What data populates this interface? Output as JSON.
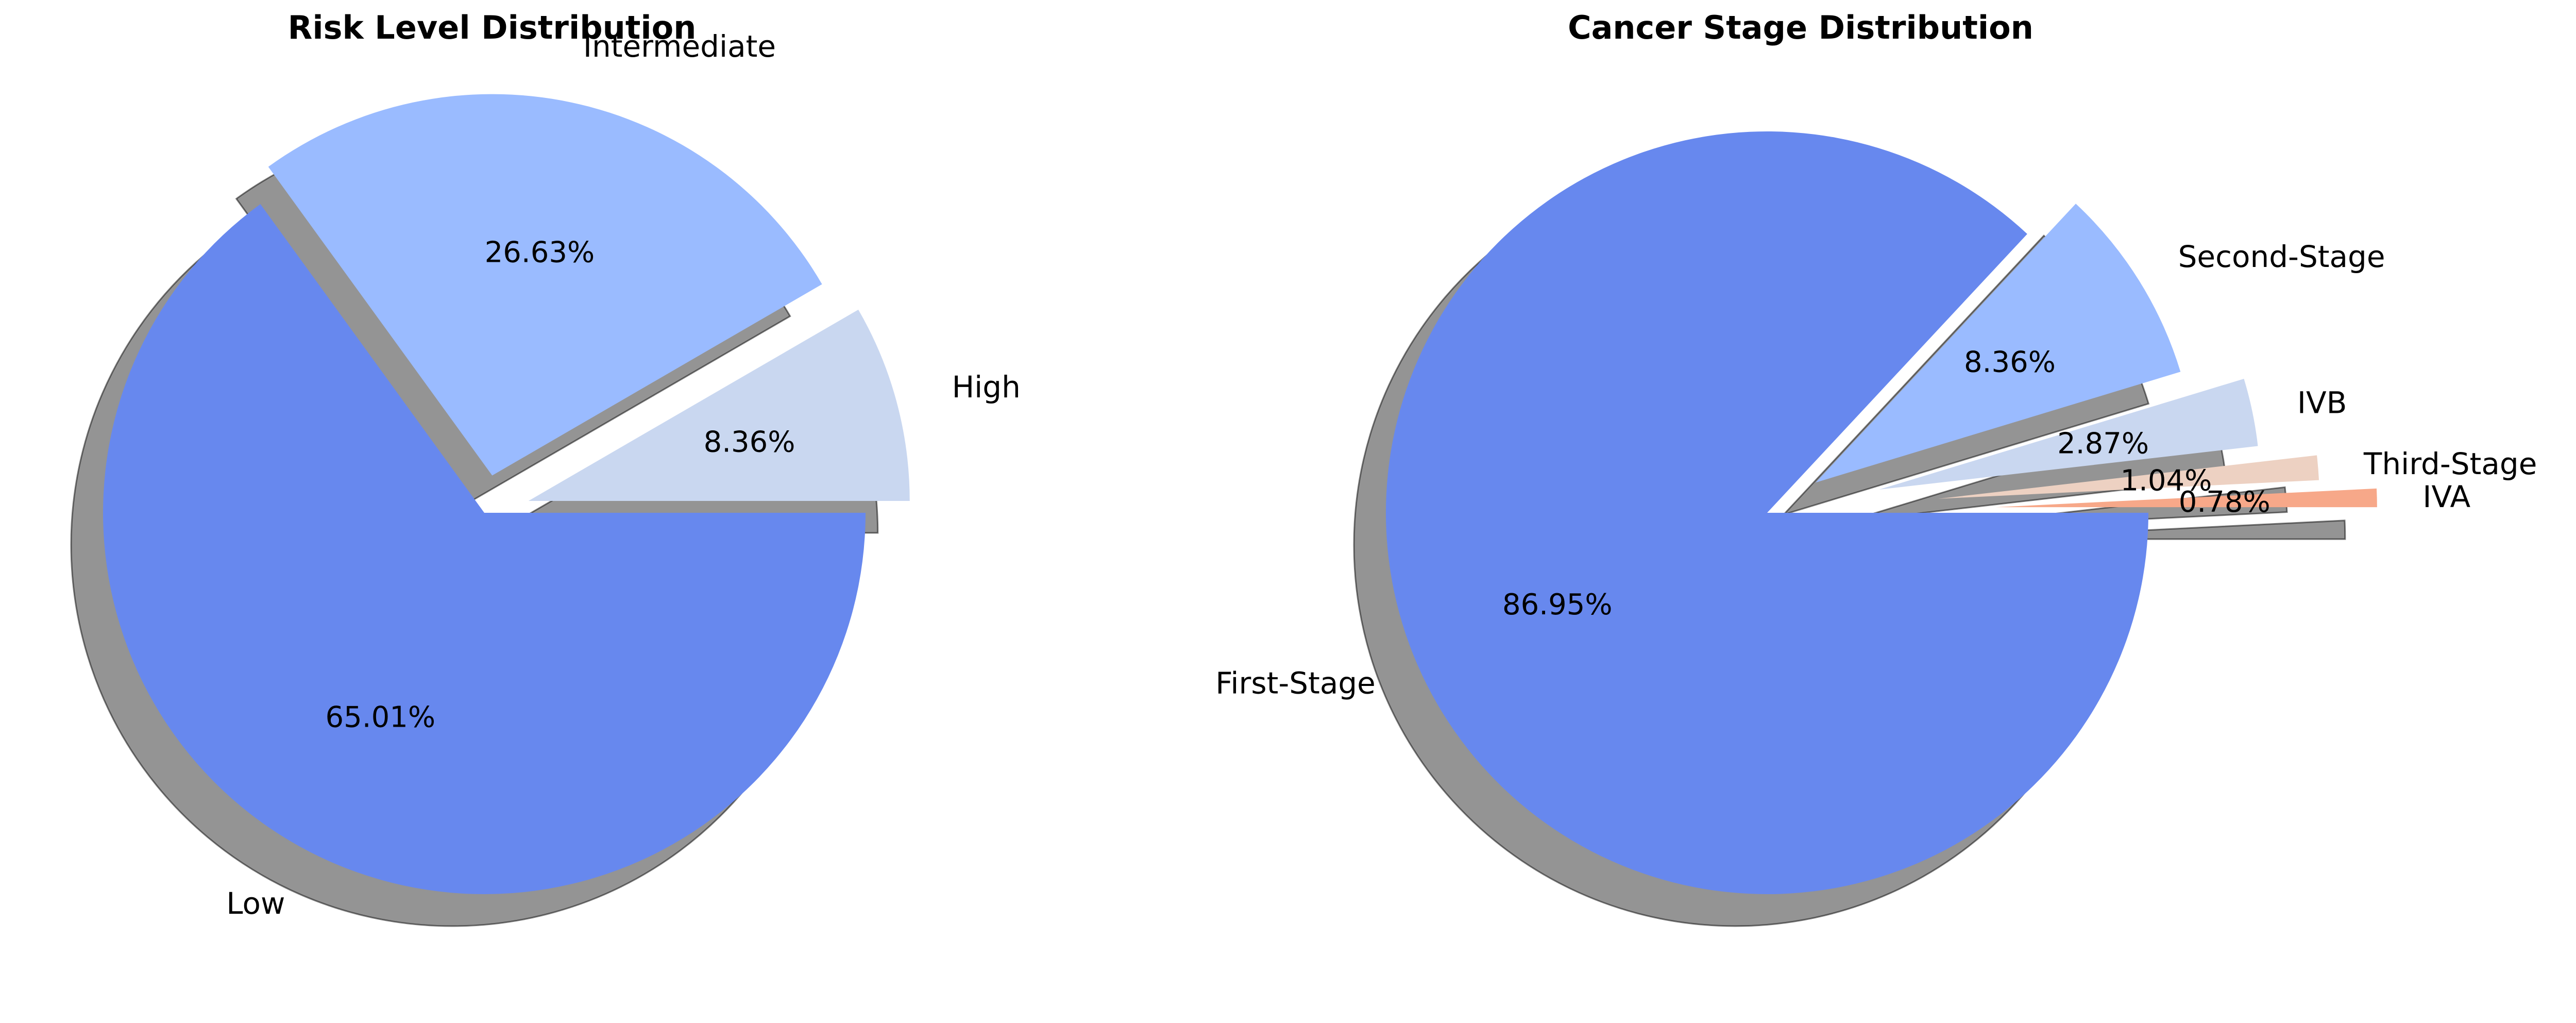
{
  "chart_data": [
    {
      "type": "pie",
      "title": "Risk Level Distribution",
      "categories": [
        "Low",
        "Intermediate",
        "High"
      ],
      "values": [
        65.01,
        26.63,
        8.36
      ],
      "percent_labels": [
        "65.01%",
        "26.63%",
        "8.36%"
      ],
      "colors": [
        "#6788ee",
        "#9abbff",
        "#c9d7f0"
      ],
      "explode": [
        0,
        0.1,
        0.12
      ],
      "shadow": true,
      "start_angle": 0,
      "legend": "none"
    },
    {
      "type": "pie",
      "title": "Cancer Stage Distribution",
      "categories": [
        "First-Stage",
        "Second-Stage",
        "IVB",
        "Third-Stage",
        "IVA"
      ],
      "values": [
        86.95,
        8.36,
        2.87,
        1.04,
        0.78
      ],
      "percent_labels": [
        "86.95%",
        "8.36%",
        "2.87%",
        "1.04%",
        "0.78%"
      ],
      "colors": [
        "#6788ee",
        "#9abbff",
        "#c9d7f0",
        "#edd1c2",
        "#f7a889"
      ],
      "explode": [
        0,
        0.15,
        0.3,
        0.45,
        0.6
      ],
      "shadow": true,
      "start_angle": 0,
      "legend": "none"
    }
  ]
}
